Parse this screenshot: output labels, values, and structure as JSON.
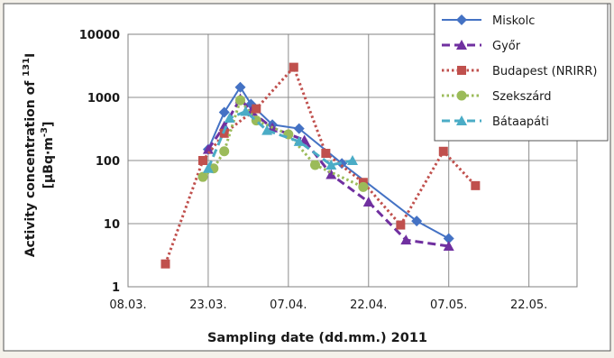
{
  "chart_data": {
    "type": "line",
    "xlabel": "Sampling date (dd.mm.) 2011",
    "ylabel_line1": "Activity concentration of ",
    "ylabel_sup": "131",
    "ylabel_iodine": "I",
    "ylabel_line2_a": "[µBq·m",
    "ylabel_line2_sup": "-3",
    "ylabel_line2_b": "]",
    "y_scale": "log",
    "ylim": [
      1,
      10000
    ],
    "xlim": [
      "08.03.",
      "31.05."
    ],
    "x_ticks": [
      "08.03.",
      "23.03.",
      "07.04.",
      "22.04.",
      "07.05.",
      "22.05."
    ],
    "y_ticks": [
      "1",
      "10",
      "100",
      "1000",
      "10000"
    ],
    "grid": true,
    "legend_position": "top-right",
    "series": [
      {
        "name": "Miskolc",
        "color": "#4472c4",
        "line_style": "solid",
        "marker": "diamond",
        "x": [
          "23.03.",
          "26.03.",
          "29.03.",
          "31.03.",
          "04.04.",
          "09.04.",
          "17.04.",
          "01.05.",
          "07.05."
        ],
        "y": [
          150,
          580,
          1450,
          780,
          370,
          320,
          90,
          11,
          5.8
        ]
      },
      {
        "name": "Győr",
        "color": "#7030a0",
        "line_style": "dashed",
        "marker": "triangle",
        "x": [
          "23.03.",
          "26.03.",
          "29.03.",
          "31.03.",
          "04.04.",
          "10.04.",
          "15.04.",
          "22.04.",
          "29.04.",
          "07.05."
        ],
        "y": [
          150,
          350,
          950,
          600,
          330,
          210,
          60,
          22,
          5.5,
          4.4
        ]
      },
      {
        "name": "Budapest (NRIRR)",
        "color": "#c0504d",
        "line_style": "dotted",
        "marker": "square",
        "x": [
          "15.03.",
          "22.03.",
          "26.03.",
          "01.04.",
          "08.04.",
          "14.04.",
          "21.04.",
          "28.04.",
          "06.05.",
          "12.05."
        ],
        "y": [
          2.3,
          100,
          270,
          660,
          3000,
          130,
          45,
          9.5,
          140,
          40
        ]
      },
      {
        "name": "Szekszárd",
        "color": "#9bbb59",
        "line_style": "dotted",
        "marker": "circle",
        "x": [
          "22.03.",
          "24.03.",
          "26.03.",
          "29.03.",
          "01.04.",
          "07.04.",
          "12.04.",
          "21.04."
        ],
        "y": [
          55,
          75,
          140,
          900,
          430,
          260,
          85,
          38
        ]
      },
      {
        "name": "Bátaapáti",
        "color": "#4bacc6",
        "line_style": "dashed",
        "marker": "triangle",
        "x": [
          "23.03.",
          "27.03.",
          "30.03.",
          "03.04.",
          "09.04.",
          "15.04.",
          "19.04."
        ],
        "y": [
          75,
          470,
          600,
          300,
          200,
          85,
          100
        ]
      }
    ]
  }
}
